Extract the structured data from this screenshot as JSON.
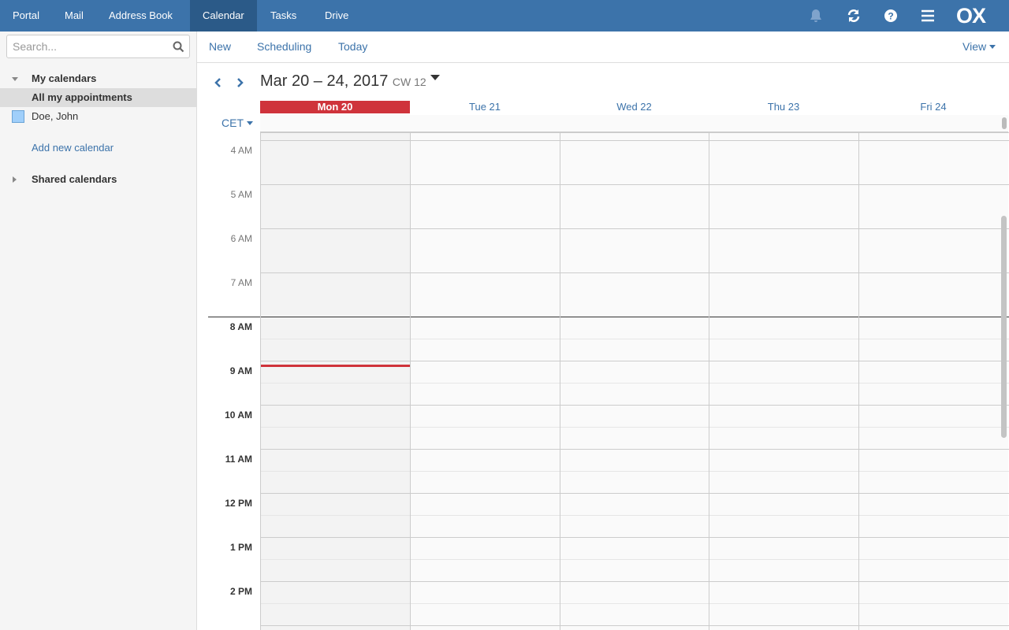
{
  "topbar": {
    "apps": [
      "Portal",
      "Mail",
      "Address Book",
      "Calendar",
      "Tasks",
      "Drive"
    ],
    "active": "Calendar",
    "icons": [
      "bell-icon",
      "refresh-icon",
      "help-icon",
      "menu-icon"
    ],
    "logo": "OX"
  },
  "sidebar": {
    "search_placeholder": "Search...",
    "my_calendars": "My calendars",
    "all_appointments": "All my appointments",
    "calendar_owner": "Doe, John",
    "calendar_color": "#a0cffa",
    "add_calendar": "Add new calendar",
    "shared_calendars": "Shared calendars"
  },
  "toolbar": {
    "new": "New",
    "scheduling": "Scheduling",
    "today": "Today",
    "view": "View"
  },
  "calendar": {
    "range": "Mar 20 – 24, 2017",
    "week": "CW 12",
    "timezone": "CET",
    "days": [
      "Mon 20",
      "Tue 21",
      "Wed 22",
      "Thu 23",
      "Fri 24"
    ],
    "today_index": 0,
    "hours": [
      "4 AM",
      "5 AM",
      "6 AM",
      "7 AM",
      "8 AM",
      "9 AM",
      "10 AM",
      "11 AM",
      "12 PM",
      "1 PM",
      "2 PM"
    ],
    "work_start": "8 AM",
    "current_time": "9:07 AM",
    "today_color": "#cf333b"
  }
}
